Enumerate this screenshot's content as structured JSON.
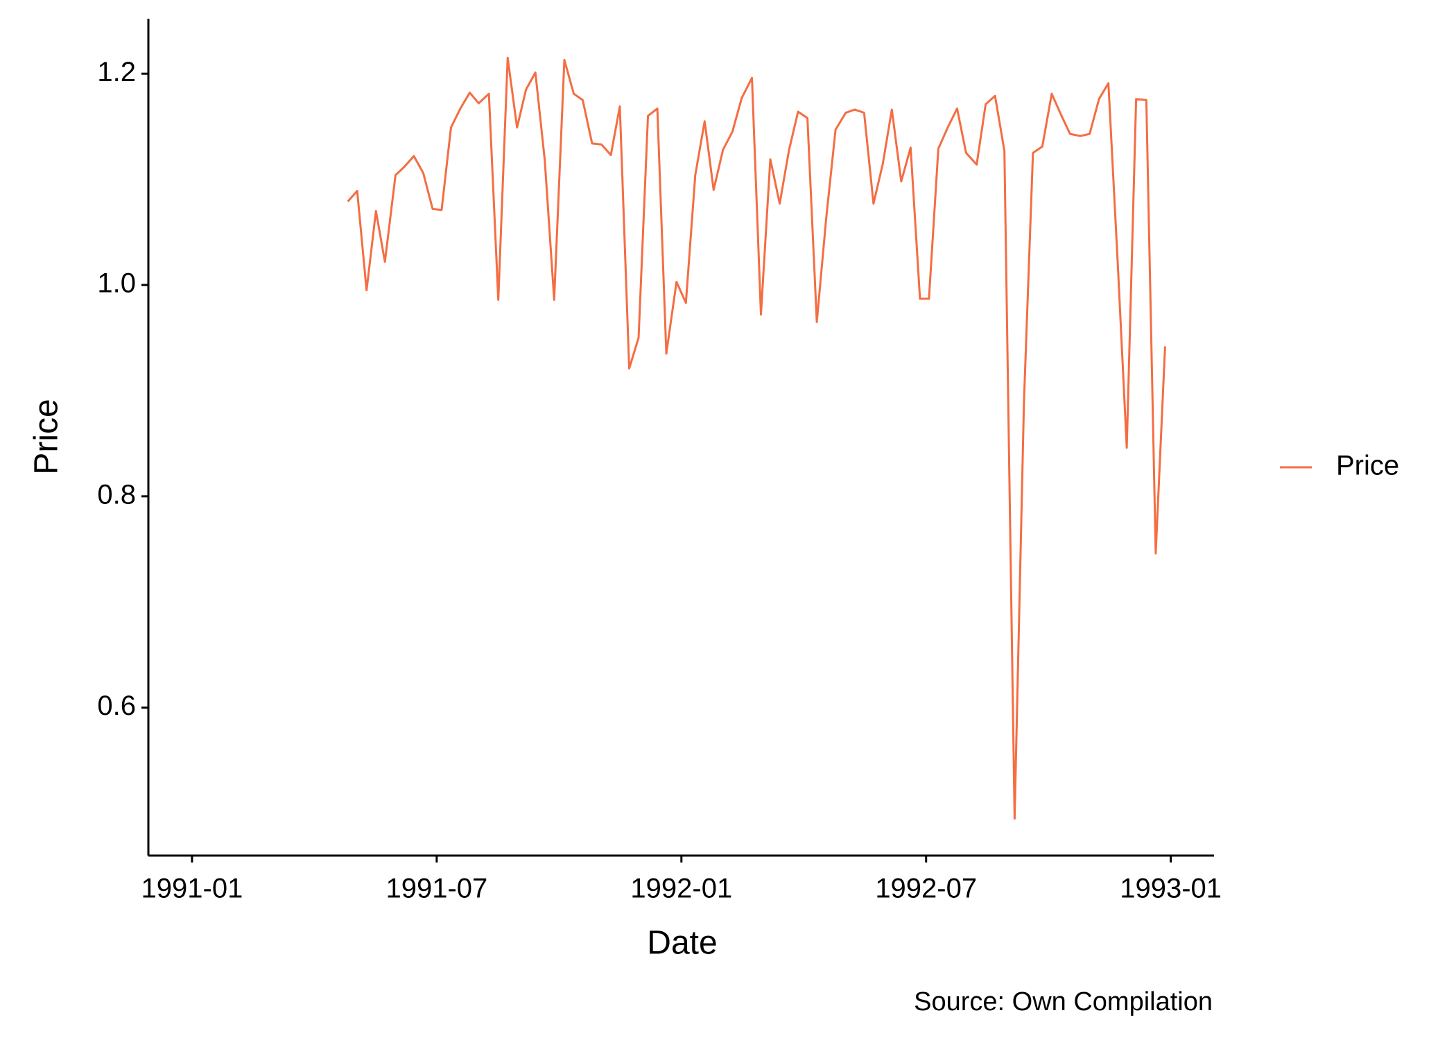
{
  "chart_data": {
    "type": "line",
    "x_label": "Date",
    "y_label": "Price",
    "caption": "Source: Own Compilation",
    "x": [
      3.82,
      4.05,
      4.28,
      4.51,
      4.73,
      4.99,
      5.21,
      5.44,
      5.67,
      5.9,
      6.12,
      6.35,
      6.58,
      6.81,
      7.03,
      7.28,
      7.51,
      7.74,
      7.97,
      8.19,
      8.42,
      8.65,
      8.88,
      9.13,
      9.36,
      9.58,
      9.81,
      10.04,
      10.27,
      10.49,
      10.72,
      10.95,
      11.18,
      11.41,
      11.63,
      11.88,
      12.11,
      12.34,
      12.57,
      12.79,
      13.02,
      13.25,
      13.48,
      13.73,
      13.95,
      14.18,
      14.41,
      14.64,
      14.86,
      15.09,
      15.32,
      15.55,
      15.78,
      16.03,
      16.25,
      16.48,
      16.71,
      16.94,
      17.16,
      17.39,
      17.62,
      17.85,
      18.07,
      18.3,
      18.53,
      18.76,
      18.98,
      19.24,
      19.46,
      19.69,
      19.92,
      20.17,
      20.4,
      20.62,
      20.85,
      21.08,
      21.31,
      21.53,
      21.78,
      22.01,
      22.24,
      22.47,
      22.7,
      22.92,
      23.15,
      23.4,
      23.63,
      23.86
    ],
    "series": [
      {
        "name": "Price",
        "color": "#F46D43",
        "values": [
          1.079,
          1.089,
          0.995,
          1.07,
          1.022,
          1.104,
          1.112,
          1.122,
          1.106,
          1.072,
          1.071,
          1.149,
          1.167,
          1.182,
          1.172,
          1.181,
          0.986,
          1.215,
          1.149,
          1.185,
          1.201,
          1.118,
          0.986,
          1.213,
          1.181,
          1.175,
          1.134,
          1.133,
          1.123,
          1.169,
          0.921,
          0.95,
          1.16,
          1.167,
          0.935,
          1.003,
          0.983,
          1.104,
          1.155,
          1.09,
          1.128,
          1.145,
          1.177,
          1.196,
          0.972,
          1.119,
          1.077,
          1.128,
          1.164,
          1.158,
          0.965,
          1.063,
          1.147,
          1.163,
          1.166,
          1.163,
          1.077,
          1.115,
          1.166,
          1.098,
          1.13,
          0.987,
          0.987,
          1.129,
          1.149,
          1.167,
          1.125,
          1.114,
          1.171,
          1.179,
          1.127,
          0.495,
          0.89,
          1.125,
          1.131,
          1.181,
          1.161,
          1.143,
          1.141,
          1.143,
          1.176,
          1.191,
          1.02,
          0.846,
          1.176,
          1.175,
          0.746,
          0.942
        ]
      }
    ],
    "xlim": [
      -1.07,
      25.06
    ],
    "xticks": [
      {
        "value": 0,
        "label": "1991-01"
      },
      {
        "value": 6,
        "label": "1991-07"
      },
      {
        "value": 12,
        "label": "1992-01"
      },
      {
        "value": 18,
        "label": "1992-07"
      },
      {
        "value": 24,
        "label": "1993-01"
      }
    ],
    "ylim": [
      0.46,
      1.252
    ],
    "yticks": [
      0.6,
      0.8,
      {
        "value": 1,
        "label": "1.0"
      },
      1.2
    ],
    "grid": false,
    "legend": "right"
  }
}
